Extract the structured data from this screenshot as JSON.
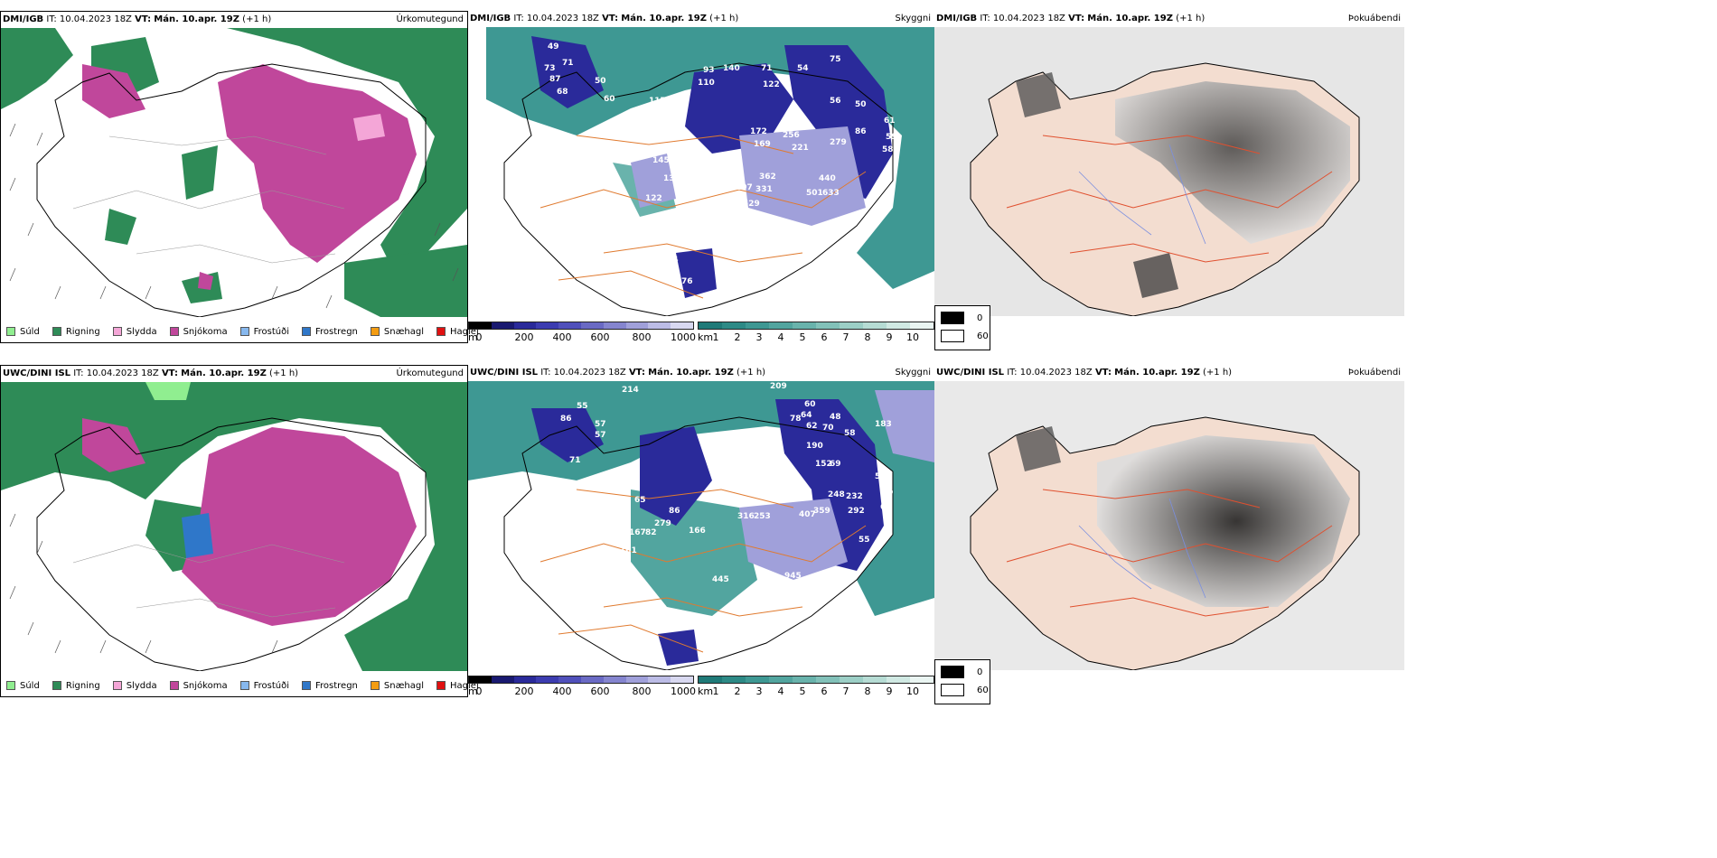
{
  "rows": [
    {
      "model": "DMI/IGB",
      "it_label": "IT:",
      "it_value": "10.04.2023 18Z",
      "vt_label": "VT:",
      "vt_value": "Mán. 10.apr. 19Z",
      "lead": "(+1 h)",
      "panels": {
        "precip": {
          "title": "Úrkomutegund"
        },
        "cloud": {
          "title": "Skyggni"
        },
        "fog": {
          "title": "Þokuábendi"
        }
      }
    },
    {
      "model": "UWC/DINI ISL",
      "it_label": "IT:",
      "it_value": "10.04.2023 18Z",
      "vt_label": "VT:",
      "vt_value": "Mán. 10.apr. 19Z",
      "lead": "(+1 h)",
      "panels": {
        "precip": {
          "title": "Úrkomutegund"
        },
        "cloud": {
          "title": "Skyggni"
        },
        "fog": {
          "title": "Þokuábendi"
        }
      }
    }
  ],
  "precip_legend": [
    {
      "label": "Súld",
      "color": "#90ee90"
    },
    {
      "label": "Rigning",
      "color": "#2e8b57"
    },
    {
      "label": "Slydda",
      "color": "#f4a6d7"
    },
    {
      "label": "Snjókoma",
      "color": "#c0479b"
    },
    {
      "label": "Frostúði",
      "color": "#87b8ee"
    },
    {
      "label": "Frostregn",
      "color": "#2f77c9"
    },
    {
      "label": "Snæhagl",
      "color": "#f39c12"
    },
    {
      "label": "Haglél",
      "color": "#e01010"
    }
  ],
  "cloud_base_bar": {
    "unit": "m",
    "ticks": [
      "0",
      "200",
      "400",
      "600",
      "800",
      "1000"
    ],
    "colors": [
      "#000000",
      "#191970",
      "#2a2a9a",
      "#3c3cb0",
      "#5050bb",
      "#6a6ac4",
      "#8585cf",
      "#a0a0da",
      "#bcbce6",
      "#d8d8f0"
    ]
  },
  "visibility_bar": {
    "unit": "km",
    "ticks": [
      "1",
      "2",
      "3",
      "4",
      "5",
      "6",
      "7",
      "8",
      "9",
      "10"
    ],
    "colors": [
      "#1f7a78",
      "#2d8a86",
      "#3e9893",
      "#52a59f",
      "#69b3ac",
      "#82c1b9",
      "#9ccfc6",
      "#b6dcd4",
      "#d0e9e3",
      "#eaf5f2"
    ]
  },
  "fog_legend": {
    "max": "0",
    "min": "60"
  },
  "map_labels": {
    "dmi": [
      "49",
      "71",
      "73",
      "87",
      "68",
      "50",
      "60",
      "117",
      "93",
      "110",
      "140",
      "71",
      "54",
      "75",
      "122",
      "56",
      "50",
      "61",
      "59",
      "58",
      "145",
      "130",
      "122",
      "107",
      "172",
      "169",
      "256",
      "221",
      "279",
      "86",
      "362",
      "331",
      "501",
      "633",
      "440",
      "529",
      "190",
      "186",
      "54",
      "82",
      "76"
    ],
    "uwc": [
      "214",
      "209",
      "55",
      "86",
      "57",
      "57",
      "71",
      "60",
      "78",
      "64",
      "62",
      "48",
      "70",
      "58",
      "183",
      "104",
      "190",
      "152",
      "69",
      "248",
      "232",
      "292",
      "65",
      "86",
      "279",
      "167",
      "82",
      "161",
      "166",
      "316",
      "253",
      "407",
      "359",
      "445",
      "945",
      "889",
      "55",
      "54",
      "59",
      "63"
    ]
  }
}
